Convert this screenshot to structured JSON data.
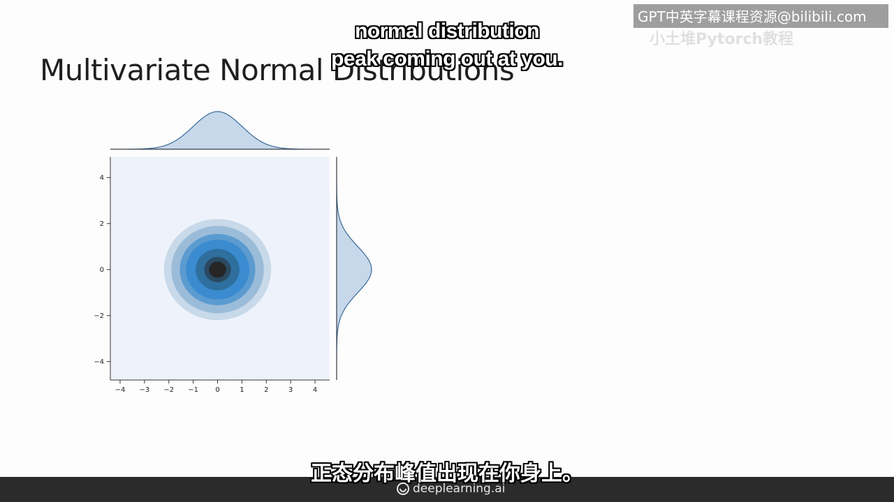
{
  "slide": {
    "title": "Multivariate Normal Distributions"
  },
  "subtitles": {
    "english_line1": "normal distribution",
    "english_line2": "peak coming out at you.",
    "chinese": "正态分布峰值出现在你身上。"
  },
  "watermark": {
    "text": "GPT中英字幕课程资源@bilibili.com",
    "subtext": "小土堆Pytorch教程"
  },
  "footer": {
    "brand": "deeplearning.ai",
    "logo_icon": "deeplearning-logo-icon"
  },
  "colors": {
    "contour_levels": [
      "#eef3fb",
      "#c8d9ea",
      "#9bbcd8",
      "#5b9bd0",
      "#3b8bd0",
      "#2f6f9e",
      "#2a4a62",
      "#262626"
    ],
    "marginal_fill": "#c6d8ea",
    "marginal_line": "#3a6a98",
    "footer_bar": "#2b2b2b"
  },
  "chart_data": {
    "type": "heatmap",
    "subtype": "joint kde plot (bivariate normal) with marginal distributions",
    "x_ticks": [
      "−4",
      "−3",
      "−2",
      "−1",
      "0",
      "1",
      "2",
      "3",
      "4"
    ],
    "y_ticks": [
      "4",
      "2",
      "0",
      "−2",
      "−4"
    ],
    "x_range": [
      -4.4,
      4.6
    ],
    "y_range": [
      -4.8,
      4.9
    ],
    "mean": [
      0,
      0
    ],
    "std": [
      1,
      1
    ],
    "contour_radii_sigma": [
      2.2,
      1.9,
      1.55,
      1.3,
      0.9,
      0.55,
      0.35
    ],
    "marginal_top": "normal density of x, peak at 0",
    "marginal_right": "normal density of y, peak at 0",
    "grid": false,
    "legend": "none"
  }
}
